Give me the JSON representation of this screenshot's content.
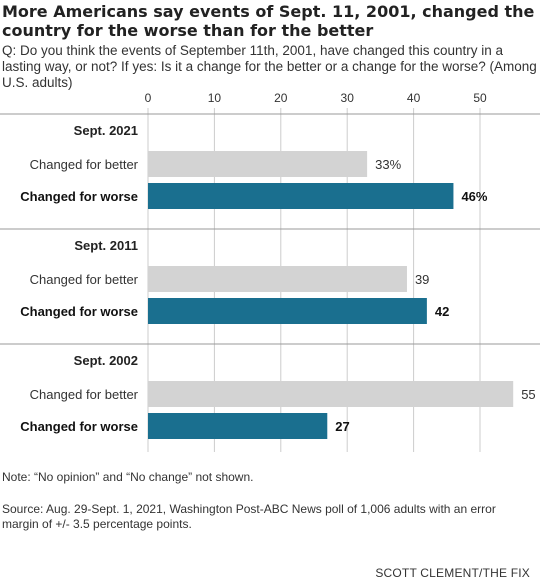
{
  "title": "More Americans say events of Sept. 11, 2001, changed the country for the worse than for the better",
  "question": "Q: Do you think the events of September 11th, 2001, have changed this country in a lasting way, or not? If yes: Is it a change for the better or a change for the worse? (Among U.S. adults)",
  "note": "Note: “No opinion” and “No change” not shown.",
  "source": "Source: Aug. 29-Sept. 1, 2021, Washington Post-ABC News poll of 1,006 adults with an error margin of +/- 3.5 percentage points.",
  "credit": "SCOTT CLEMENT/THE FIX",
  "colors": {
    "better": "#d3d3d3",
    "worse": "#1a6f8f",
    "grid": "#cccccc",
    "divider": "#999999"
  },
  "chart_data": {
    "type": "bar",
    "orientation": "horizontal",
    "title": "More Americans say events of Sept. 11, 2001, changed the country for the worse than for the better",
    "xlim": [
      0,
      55
    ],
    "x_ticks": [
      0,
      10,
      20,
      30,
      40,
      50
    ],
    "x_tick_labels": [
      "0",
      "10",
      "20",
      "30",
      "40",
      "50"
    ],
    "grid": true,
    "groups": [
      {
        "label": "Sept. 2021",
        "rows": [
          {
            "label": "Changed for better",
            "value": 33,
            "value_label": "33%",
            "kind": "better"
          },
          {
            "label": "Changed for worse",
            "value": 46,
            "value_label": "46%",
            "kind": "worse"
          }
        ]
      },
      {
        "label": "Sept. 2011",
        "rows": [
          {
            "label": "Changed for better",
            "value": 39,
            "value_label": "39",
            "kind": "better"
          },
          {
            "label": "Changed for worse",
            "value": 42,
            "value_label": "42",
            "kind": "worse"
          }
        ]
      },
      {
        "label": "Sept. 2002",
        "rows": [
          {
            "label": "Changed for better",
            "value": 55,
            "value_label": "55",
            "kind": "better"
          },
          {
            "label": "Changed for worse",
            "value": 27,
            "value_label": "27",
            "kind": "worse"
          }
        ]
      }
    ]
  }
}
